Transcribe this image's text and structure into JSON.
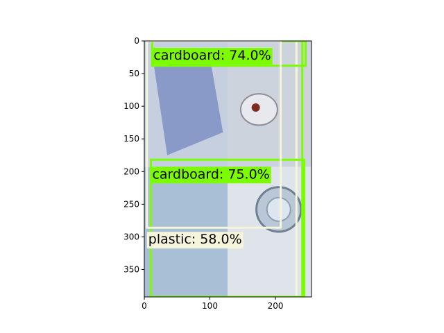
{
  "figure": {
    "image_extent": {
      "x": [
        0,
        255
      ],
      "y": [
        0,
        392
      ]
    },
    "quadrant_boundaries": {
      "x": 127,
      "y": 193
    }
  },
  "axes": {
    "x_ticks": [
      {
        "value": 0,
        "label": "0"
      },
      {
        "value": 100,
        "label": "100"
      },
      {
        "value": 200,
        "label": "200"
      }
    ],
    "y_ticks": [
      {
        "value": 0,
        "label": "0"
      },
      {
        "value": 50,
        "label": "50"
      },
      {
        "value": 100,
        "label": "100"
      },
      {
        "value": 150,
        "label": "150"
      },
      {
        "value": 200,
        "label": "200"
      },
      {
        "value": 250,
        "label": "250"
      },
      {
        "value": 300,
        "label": "300"
      },
      {
        "value": 350,
        "label": "350"
      }
    ]
  },
  "quadrants": [
    {
      "name": "top-left",
      "depicts": "blue plastic bottle",
      "fill": "#c6cfe0"
    },
    {
      "name": "top-right",
      "depicts": "glass with eye-like reflection",
      "fill": "#cdd3dc"
    },
    {
      "name": "bottom-left",
      "depicts": "light blue cardboard",
      "fill": "#a8bfd6"
    },
    {
      "name": "bottom-right",
      "depicts": "metal can lid",
      "fill": "#dfe4ea"
    }
  ],
  "detections": [
    {
      "label": "cardboard: 74.0%",
      "box": {
        "x1": 12,
        "y1": 0,
        "x2": 246,
        "y2": 38
      },
      "anchor": "top-left",
      "edge_color": "#7cfc00",
      "label_bg": "#7cfc00"
    },
    {
      "label": "cardboard: 75.0%",
      "box": {
        "x1": 10,
        "y1": 182,
        "x2": 244,
        "y2": 392
      },
      "anchor": "top-left",
      "edge_color": "#7cfc00",
      "label_bg": "#7cfc00"
    },
    {
      "label": "plastic: 58.0%",
      "box": {
        "x1": 4,
        "y1": 0,
        "x2": 208,
        "y2": 286
      },
      "anchor": "bottom-left",
      "edge_color": "#f5f5dc",
      "label_bg": "#f5f5dc"
    }
  ],
  "extra_lines": [
    {
      "x1": 232,
      "y1": 0,
      "x2": 232,
      "y2": 392,
      "color": "#f5f5dc"
    },
    {
      "x1": 241,
      "y1": 0,
      "x2": 241,
      "y2": 392,
      "color": "#7cfc00"
    }
  ]
}
